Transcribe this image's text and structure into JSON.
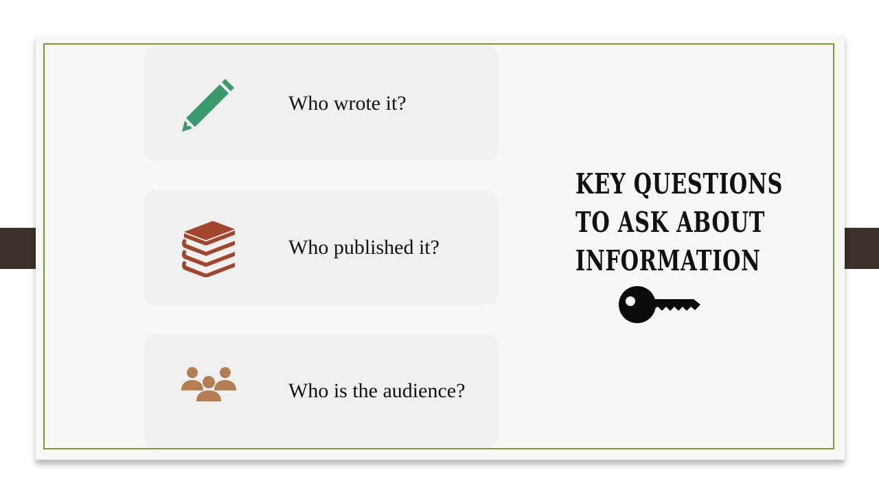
{
  "items": [
    {
      "label": "Who wrote it?",
      "icon": "pencil-icon",
      "color": "#3b9a6b"
    },
    {
      "label": "Who published it?",
      "icon": "books-icon",
      "color": "#a3452c"
    },
    {
      "label": "Who is the audience?",
      "icon": "audience-icon",
      "color": "#b27e52"
    }
  ],
  "title": {
    "lines": [
      "KEY QUESTIONS",
      "TO ASK ABOUT",
      "INFORMATION"
    ]
  },
  "key_icon": "key-icon",
  "colors": {
    "frame": "#7b9a2f",
    "tabs": "#3b3129",
    "card": "#f7f7f6",
    "item_bg": "#f0f0f0"
  }
}
